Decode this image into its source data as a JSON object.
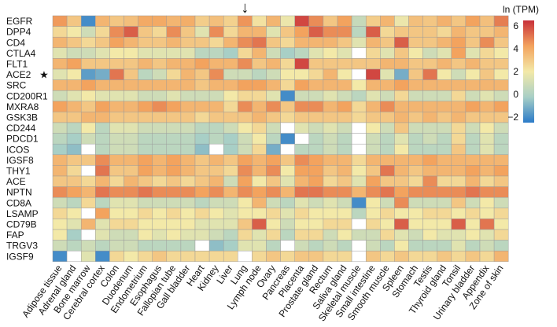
{
  "chart_data": {
    "type": "heatmap",
    "title": "",
    "legend": {
      "title": "ln (TPM)",
      "ticks": [
        6,
        4,
        2,
        0,
        -2
      ],
      "range": [
        -2.5,
        6.5
      ],
      "placement": "right"
    },
    "colors": {
      "low": "#2b7bc8",
      "mid_low": "#a8cfc6",
      "mid": "#f3e9a8",
      "mid_high": "#f3a35e",
      "high": "#c8303a",
      "missing": "#ffffff"
    },
    "rows": [
      "EGFR",
      "DPP4",
      "CD4",
      "CTLA4",
      "FLT1",
      "ACE2",
      "SRC",
      "CD200R1",
      "MXRA8",
      "GSK3B",
      "CD244",
      "PDCD1",
      "ICOS",
      "IGSF8",
      "THY1",
      "ACE",
      "NPTN",
      "CD8A",
      "LSAMP",
      "CD79B",
      "FAP",
      "TRGV3",
      "IGSF9"
    ],
    "marked_row": {
      "label": "ACE2",
      "marker": "★"
    },
    "columns": [
      "Adipose tissue",
      "Adrenal gland",
      "Bone marrow",
      "Cerebral cortex",
      "Colon",
      "Duodenum",
      "Endometrium",
      "Esophagus",
      "Fallopian tube",
      "Gall bladder",
      "Heart",
      "Kidney",
      "Liver",
      "Lung",
      "Lymph node",
      "Ovary",
      "Pancreas",
      "Placenta",
      "Prostate gland",
      "Rectum",
      "Saliva gland",
      "Skeletal muscle",
      "Small intestine",
      "Smooth muscle",
      "Spleen",
      "Stomach",
      "Testis",
      "Thyroid gland",
      "Tonsil",
      "Urinary bladder",
      "Appendix",
      "Zone of skin"
    ],
    "marked_column": {
      "label": "Lung",
      "marker": "↓"
    },
    "values": [
      [
        4.2,
        3.0,
        -2.0,
        3.5,
        3.0,
        3.2,
        3.8,
        3.8,
        3.5,
        3.7,
        2.8,
        3.2,
        2.7,
        4.3,
        2.2,
        3.5,
        1.8,
        6.0,
        4.5,
        3.0,
        4.0,
        0.8,
        2.8,
        3.5,
        1.8,
        3.2,
        3.0,
        3.6,
        3.0,
        4.0,
        3.2,
        4.8
      ],
      [
        2.5,
        2.0,
        1.0,
        2.5,
        4.5,
        5.5,
        3.0,
        2.5,
        4.5,
        3.0,
        1.5,
        4.5,
        2.5,
        3.5,
        3.5,
        1.5,
        3.0,
        4.0,
        5.5,
        4.5,
        4.5,
        0.5,
        5.5,
        2.5,
        3.0,
        3.0,
        3.0,
        2.5,
        3.5,
        3.0,
        3.0,
        3.5
      ],
      [
        3.5,
        3.0,
        2.5,
        3.0,
        4.0,
        3.5,
        3.0,
        3.0,
        3.5,
        3.0,
        3.0,
        2.5,
        3.5,
        4.5,
        5.0,
        3.0,
        2.5,
        3.5,
        3.5,
        3.5,
        3.0,
        1.5,
        3.5,
        3.0,
        5.5,
        3.0,
        3.0,
        3.5,
        4.0,
        3.0,
        4.5,
        3.0
      ],
      [
        1.5,
        1.0,
        1.0,
        1.5,
        2.0,
        2.0,
        1.5,
        1.5,
        1.5,
        1.5,
        0.5,
        0.5,
        0.0,
        2.5,
        3.5,
        1.0,
        0.0,
        0.5,
        1.5,
        2.0,
        1.5,
        null,
        2.5,
        1.5,
        3.0,
        2.0,
        1.0,
        1.5,
        4.0,
        1.5,
        2.5,
        2.0
      ],
      [
        3.5,
        4.0,
        3.0,
        3.0,
        3.0,
        3.0,
        3.5,
        3.0,
        3.5,
        3.5,
        4.0,
        3.5,
        3.5,
        4.5,
        3.0,
        3.5,
        2.5,
        6.0,
        3.0,
        3.0,
        3.0,
        3.0,
        3.0,
        3.5,
        3.5,
        3.0,
        3.0,
        3.5,
        3.0,
        3.5,
        3.0,
        3.0
      ],
      [
        1.5,
        2.0,
        -1.5,
        -1.0,
        5.0,
        3.0,
        0.5,
        1.0,
        2.5,
        3.5,
        3.0,
        4.5,
        1.0,
        1.0,
        0.5,
        1.0,
        2.0,
        2.0,
        2.5,
        3.5,
        2.0,
        null,
        6.0,
        1.5,
        -1.0,
        3.0,
        5.0,
        2.0,
        1.0,
        2.0,
        3.0,
        2.0
      ],
      [
        3.5,
        3.5,
        4.0,
        3.5,
        3.5,
        3.5,
        3.5,
        3.5,
        3.5,
        3.5,
        3.0,
        3.5,
        3.5,
        4.0,
        4.0,
        3.5,
        2.5,
        4.0,
        3.5,
        3.5,
        3.5,
        2.0,
        3.5,
        3.5,
        4.0,
        3.5,
        3.5,
        3.5,
        3.5,
        3.5,
        3.5,
        3.5
      ],
      [
        1.0,
        1.5,
        2.0,
        1.5,
        1.5,
        1.5,
        1.0,
        1.0,
        1.5,
        1.0,
        1.0,
        1.0,
        2.0,
        2.5,
        2.5,
        1.5,
        -2.0,
        1.0,
        1.0,
        1.5,
        1.0,
        0.5,
        1.5,
        1.0,
        2.5,
        1.0,
        1.0,
        1.0,
        2.5,
        1.0,
        1.5,
        1.0
      ],
      [
        4.0,
        3.5,
        3.0,
        4.0,
        3.5,
        3.5,
        4.0,
        4.5,
        4.0,
        3.5,
        3.5,
        3.5,
        2.5,
        4.5,
        3.5,
        4.5,
        3.0,
        4.5,
        4.5,
        3.5,
        4.0,
        2.5,
        3.5,
        4.5,
        3.5,
        3.5,
        3.5,
        3.5,
        3.5,
        4.0,
        3.5,
        4.0
      ],
      [
        3.0,
        3.0,
        3.5,
        3.5,
        3.0,
        3.0,
        3.0,
        3.0,
        3.0,
        3.0,
        2.5,
        3.0,
        3.0,
        3.0,
        3.5,
        3.0,
        2.5,
        3.0,
        3.0,
        3.0,
        3.0,
        2.5,
        3.0,
        3.0,
        3.5,
        3.0,
        3.5,
        3.0,
        3.5,
        3.0,
        3.0,
        3.0
      ],
      [
        1.0,
        0.5,
        2.0,
        0.5,
        1.5,
        1.5,
        1.0,
        1.0,
        1.0,
        1.0,
        0.5,
        0.5,
        1.0,
        2.0,
        2.5,
        1.0,
        null,
        1.5,
        1.0,
        1.5,
        1.0,
        null,
        2.0,
        1.0,
        3.0,
        1.0,
        1.0,
        1.0,
        2.5,
        1.0,
        2.0,
        1.0
      ],
      [
        0.5,
        0.0,
        1.0,
        0.5,
        1.0,
        1.0,
        0.5,
        0.5,
        0.5,
        0.5,
        0.0,
        0.5,
        0.0,
        1.0,
        2.0,
        0.5,
        -2.0,
        null,
        0.5,
        1.0,
        0.5,
        null,
        1.0,
        0.5,
        1.5,
        0.5,
        1.0,
        0.5,
        2.5,
        0.5,
        1.5,
        0.5
      ],
      [
        0.0,
        -0.5,
        null,
        0.5,
        1.0,
        1.0,
        0.5,
        0.5,
        0.5,
        0.5,
        -0.5,
        null,
        0.0,
        1.0,
        2.5,
        -1.0,
        null,
        0.5,
        0.5,
        1.0,
        0.5,
        null,
        1.0,
        0.5,
        2.0,
        0.5,
        0.5,
        0.5,
        3.0,
        0.5,
        1.5,
        0.5
      ],
      [
        3.5,
        3.0,
        3.0,
        4.5,
        3.5,
        3.5,
        4.0,
        3.5,
        4.0,
        3.5,
        3.0,
        3.5,
        3.0,
        4.0,
        3.5,
        4.0,
        3.0,
        4.5,
        4.0,
        3.5,
        3.5,
        2.5,
        3.5,
        3.5,
        3.5,
        3.5,
        4.0,
        3.5,
        3.5,
        3.5,
        3.5,
        3.5
      ],
      [
        3.5,
        2.5,
        null,
        5.0,
        3.0,
        3.0,
        4.0,
        3.5,
        4.0,
        3.5,
        3.0,
        3.0,
        2.5,
        4.5,
        3.5,
        4.5,
        2.0,
        4.0,
        4.0,
        3.0,
        3.5,
        2.0,
        3.0,
        5.0,
        3.5,
        3.0,
        3.5,
        3.5,
        3.5,
        4.0,
        3.5,
        4.0
      ],
      [
        3.0,
        3.0,
        2.5,
        3.5,
        2.5,
        3.5,
        3.0,
        2.5,
        3.0,
        2.5,
        3.0,
        3.5,
        1.0,
        4.0,
        2.0,
        3.0,
        1.5,
        3.5,
        4.0,
        2.5,
        3.0,
        1.5,
        4.0,
        3.0,
        3.0,
        2.5,
        4.5,
        2.5,
        2.5,
        3.5,
        2.5,
        3.0
      ],
      [
        4.5,
        4.0,
        3.5,
        5.0,
        4.5,
        4.5,
        5.0,
        4.5,
        4.5,
        4.5,
        4.0,
        4.5,
        3.5,
        4.5,
        4.0,
        4.5,
        3.5,
        5.0,
        5.0,
        4.5,
        4.5,
        3.5,
        4.5,
        5.0,
        4.0,
        4.5,
        4.5,
        4.5,
        4.5,
        5.0,
        4.5,
        4.5
      ],
      [
        1.0,
        0.5,
        2.5,
        0.5,
        1.5,
        1.5,
        1.0,
        1.0,
        1.0,
        1.0,
        0.5,
        1.0,
        1.0,
        2.0,
        3.5,
        1.0,
        0.5,
        1.5,
        1.0,
        1.5,
        1.0,
        -2.0,
        2.0,
        1.0,
        4.5,
        1.0,
        1.0,
        1.0,
        3.0,
        1.0,
        2.0,
        1.0
      ],
      [
        2.5,
        2.0,
        null,
        4.0,
        2.0,
        2.0,
        2.5,
        2.0,
        2.5,
        2.0,
        2.5,
        2.0,
        1.5,
        2.0,
        2.0,
        2.5,
        1.5,
        2.5,
        2.0,
        2.0,
        2.0,
        0.5,
        2.0,
        2.5,
        2.0,
        2.0,
        2.5,
        2.5,
        2.0,
        2.5,
        2.0,
        2.5
      ],
      [
        2.0,
        1.5,
        3.5,
        1.5,
        2.5,
        2.5,
        2.0,
        2.0,
        2.0,
        2.0,
        1.5,
        1.5,
        1.5,
        3.0,
        5.5,
        2.0,
        1.0,
        2.0,
        2.0,
        2.5,
        2.5,
        null,
        2.5,
        2.0,
        5.5,
        2.0,
        2.0,
        2.0,
        5.5,
        2.0,
        5.0,
        2.0
      ],
      [
        2.0,
        0.0,
        null,
        1.5,
        1.0,
        1.0,
        2.0,
        1.5,
        2.0,
        1.5,
        1.5,
        1.0,
        0.5,
        2.5,
        1.5,
        2.5,
        0.5,
        2.5,
        2.5,
        1.0,
        2.0,
        1.0,
        1.0,
        2.5,
        1.5,
        1.0,
        2.0,
        1.5,
        1.5,
        2.0,
        1.5,
        2.5
      ],
      [
        1.0,
        0.5,
        1.0,
        0.5,
        1.0,
        1.0,
        0.5,
        0.5,
        0.5,
        0.5,
        null,
        -0.5,
        0.0,
        1.5,
        1.5,
        0.5,
        null,
        1.0,
        0.5,
        1.0,
        0.5,
        null,
        1.0,
        0.5,
        2.0,
        0.5,
        0.5,
        0.5,
        1.5,
        0.5,
        1.0,
        0.5
      ],
      [
        -2.0,
        null,
        1.5,
        -2.0,
        2.5,
        2.0,
        2.5,
        3.0,
        2.5,
        2.5,
        2.5,
        2.5,
        2.5,
        null,
        2.5,
        3.0,
        2.5,
        3.0,
        3.0,
        2.5,
        2.5,
        null,
        3.0,
        2.5,
        3.0,
        2.5,
        2.5,
        3.0,
        2.5,
        3.0,
        2.5,
        3.5
      ]
    ]
  }
}
